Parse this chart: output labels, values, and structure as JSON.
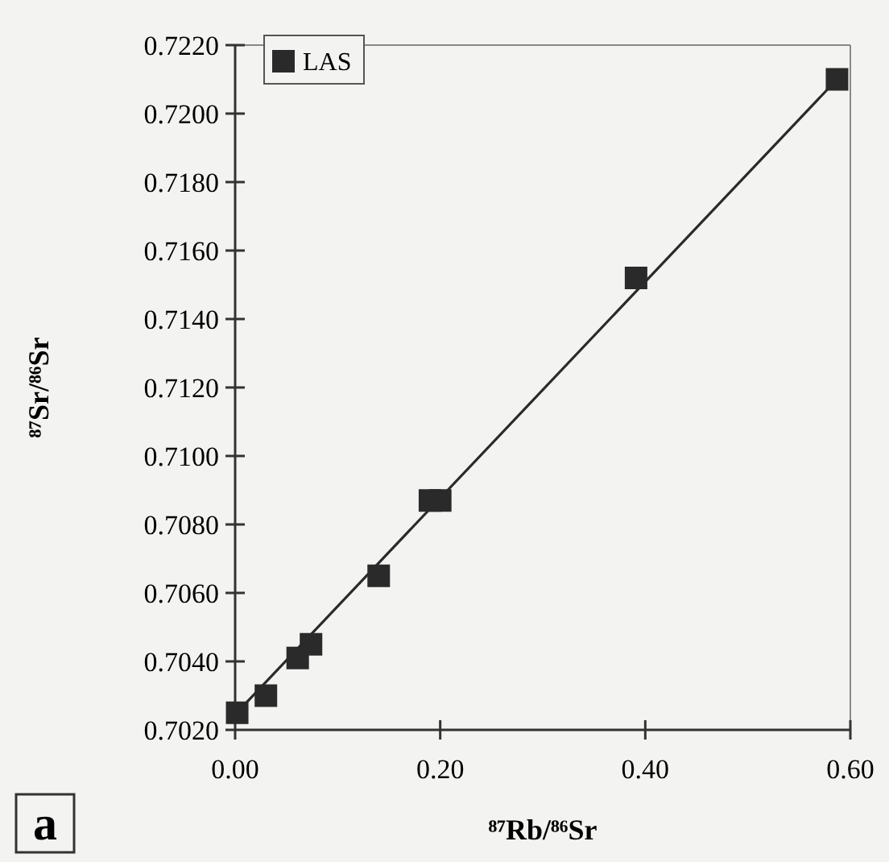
{
  "chart_data": {
    "type": "scatter",
    "xlabel": "⁸⁷Rb/⁸⁶Sr",
    "ylabel": "⁸⁷Sr/⁸⁶Sr",
    "xlim": [
      0,
      0.6
    ],
    "ylim": [
      0.702,
      0.722
    ],
    "xticks": [
      {
        "value": 0,
        "label": "0.00"
      },
      {
        "value": 0.2,
        "label": "0.20"
      },
      {
        "value": 0.4,
        "label": "0.40"
      },
      {
        "value": 0.6,
        "label": "0.60"
      }
    ],
    "yticks": [
      {
        "value": 0.702,
        "label": "0.7020"
      },
      {
        "value": 0.704,
        "label": "0.7040"
      },
      {
        "value": 0.706,
        "label": "0.7060"
      },
      {
        "value": 0.708,
        "label": "0.7080"
      },
      {
        "value": 0.71,
        "label": "0.7100"
      },
      {
        "value": 0.712,
        "label": "0.7120"
      },
      {
        "value": 0.714,
        "label": "0.7140"
      },
      {
        "value": 0.716,
        "label": "0.7160"
      },
      {
        "value": 0.718,
        "label": "0.7180"
      },
      {
        "value": 0.72,
        "label": "0.7200"
      },
      {
        "value": 0.722,
        "label": "0.7220"
      }
    ],
    "legend": "top left",
    "grid": false,
    "series": [
      {
        "name": "LAS",
        "marker": "square",
        "color": "#2a2a2a",
        "x": [
          0.002,
          0.03,
          0.061,
          0.074,
          0.14,
          0.19,
          0.2,
          0.391,
          0.587
        ],
        "values": [
          0.7025,
          0.703,
          0.7041,
          0.7045,
          0.7065,
          0.7087,
          0.7087,
          0.7152,
          0.721
        ]
      },
      {
        "type": "line",
        "marker": "none",
        "color": "#2a2a2a",
        "x": [
          0,
          0.587
        ],
        "values": [
          0.70245,
          0.721
        ]
      }
    ],
    "annotations": [
      "a"
    ]
  }
}
